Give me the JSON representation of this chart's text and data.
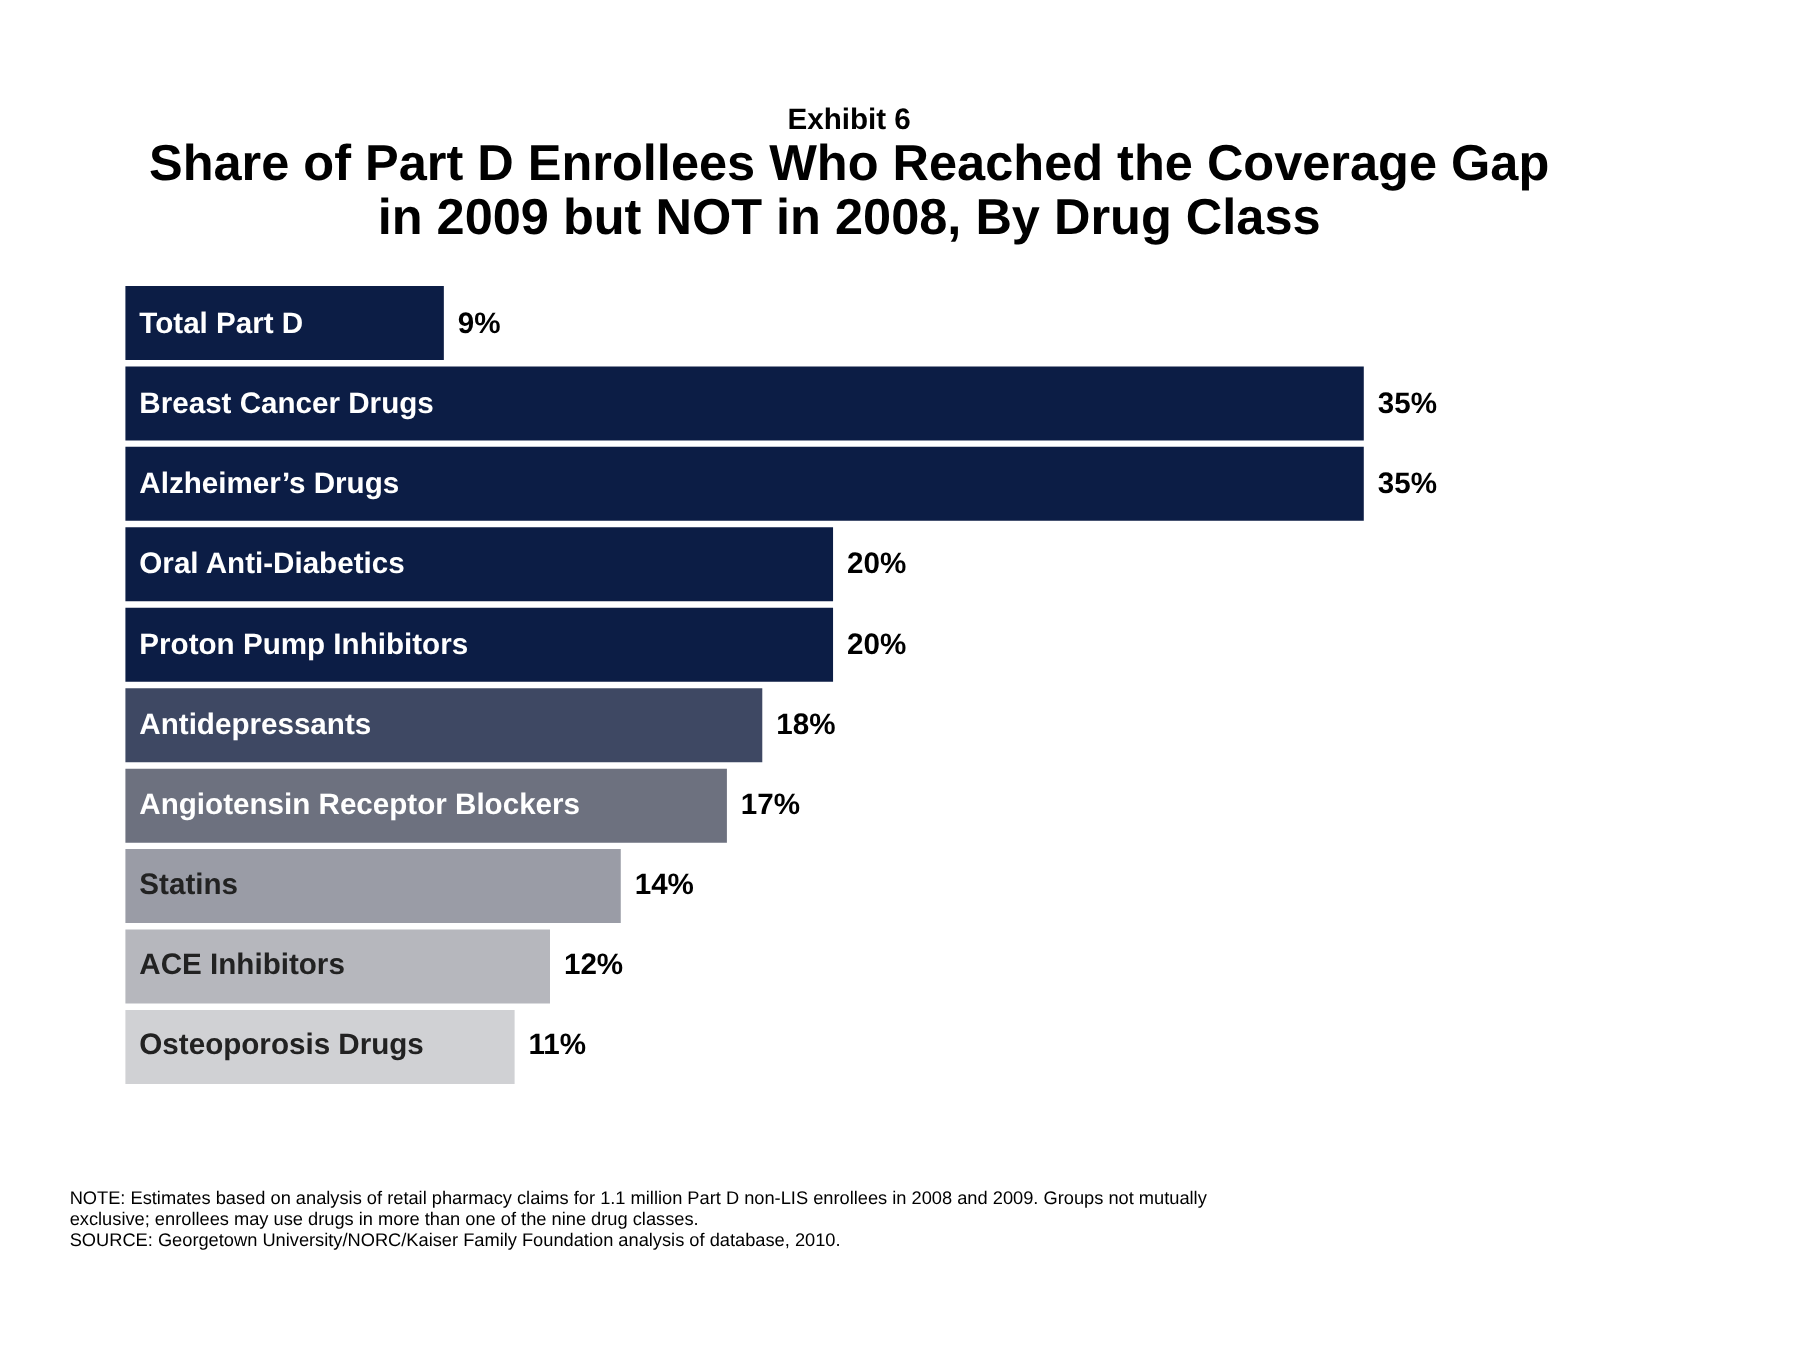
{
  "chart_data": {
    "type": "bar",
    "orientation": "horizontal",
    "subtitle": "Exhibit 6",
    "title": "Share of Part D Enrollees Who Reached the Coverage Gap\nin 2009 but NOT in 2008, By Drug Class",
    "categories": [
      "Total Part D",
      "Breast Cancer Drugs",
      "Alzheimer’s Drugs",
      "Oral Anti-Diabetics",
      "Proton Pump Inhibitors",
      "Antidepressants",
      "Angiotensin Receptor Blockers",
      "Statins",
      "ACE Inhibitors",
      "Osteoporosis Drugs"
    ],
    "values": [
      9,
      35,
      35,
      20,
      20,
      18,
      17,
      14,
      12,
      11
    ],
    "value_labels": [
      "9%",
      "35%",
      "35%",
      "20%",
      "20%",
      "18%",
      "17%",
      "14%",
      "12%",
      "11%"
    ],
    "colors": [
      "#0c1d45",
      "#0c1d45",
      "#0c1d45",
      "#0c1d45",
      "#0c1d45",
      "#3e4863",
      "#6d717f",
      "#9a9ca6",
      "#b6b7bd",
      "#d0d1d4"
    ],
    "grid": false,
    "annotations": [
      "NOTE:  Estimates based on analysis of retail pharmacy claims for 1.1 million Part D non-LIS enrollees in 2008 and 2009.  Groups not mutually",
      "exclusive; enrollees may use drugs in more than one of the nine drug classes.",
      "SOURCE:  Georgetown University/NORC/Kaiser Family Foundation analysis of database, 2010."
    ],
    "legend": false
  }
}
